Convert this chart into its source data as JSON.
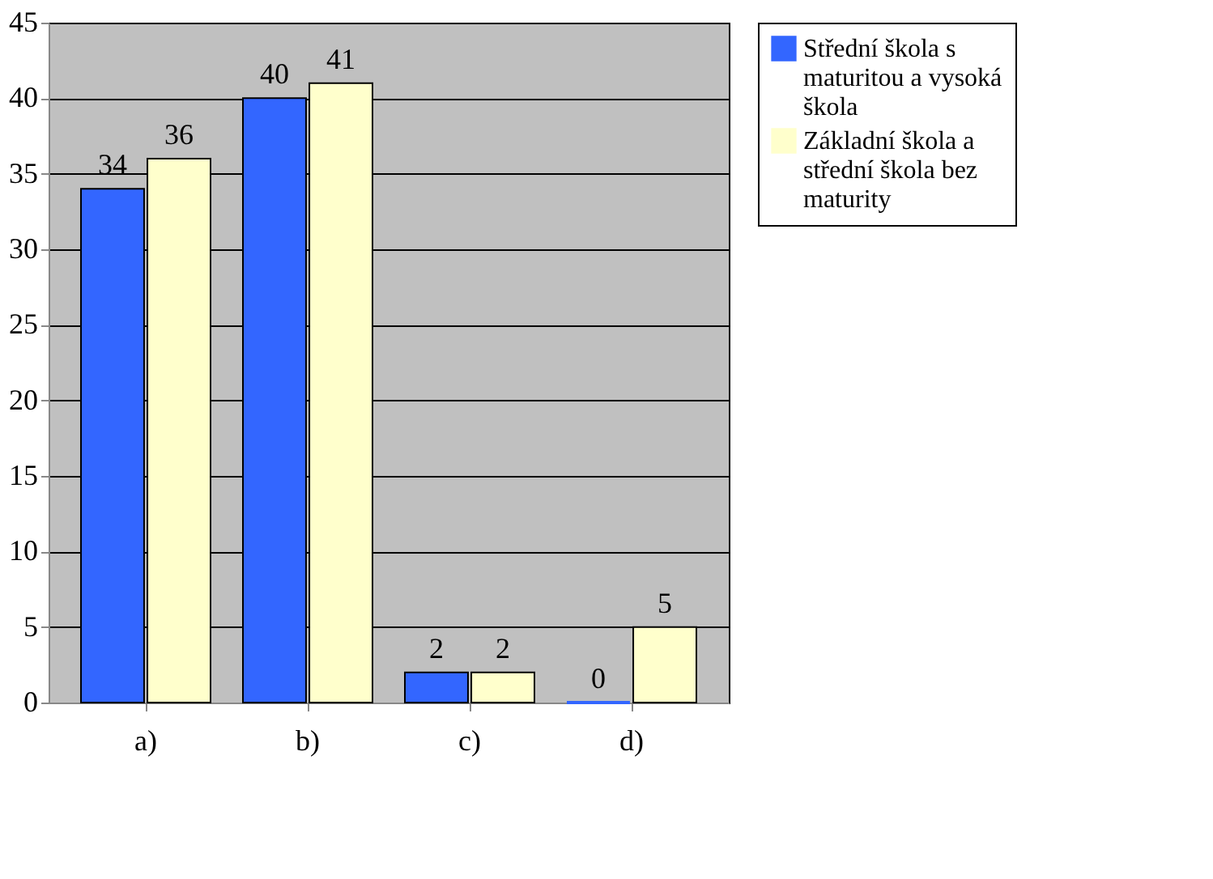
{
  "chart_data": {
    "type": "bar",
    "categories": [
      "a)",
      "b)",
      "c)",
      "d)"
    ],
    "series": [
      {
        "name": "Střední škola s maturitou a vysoká škola",
        "color": "#3366ff",
        "values": [
          34,
          40,
          2,
          0
        ]
      },
      {
        "name": "Základní škola a střední škola bez maturity",
        "color": "#ffffcc",
        "values": [
          36,
          41,
          2,
          5
        ]
      }
    ],
    "ylim": [
      0,
      45
    ],
    "yticks": [
      0,
      5,
      10,
      15,
      20,
      25,
      30,
      35,
      40,
      45
    ],
    "grid": "y",
    "legend": "right",
    "data_labels": true
  }
}
